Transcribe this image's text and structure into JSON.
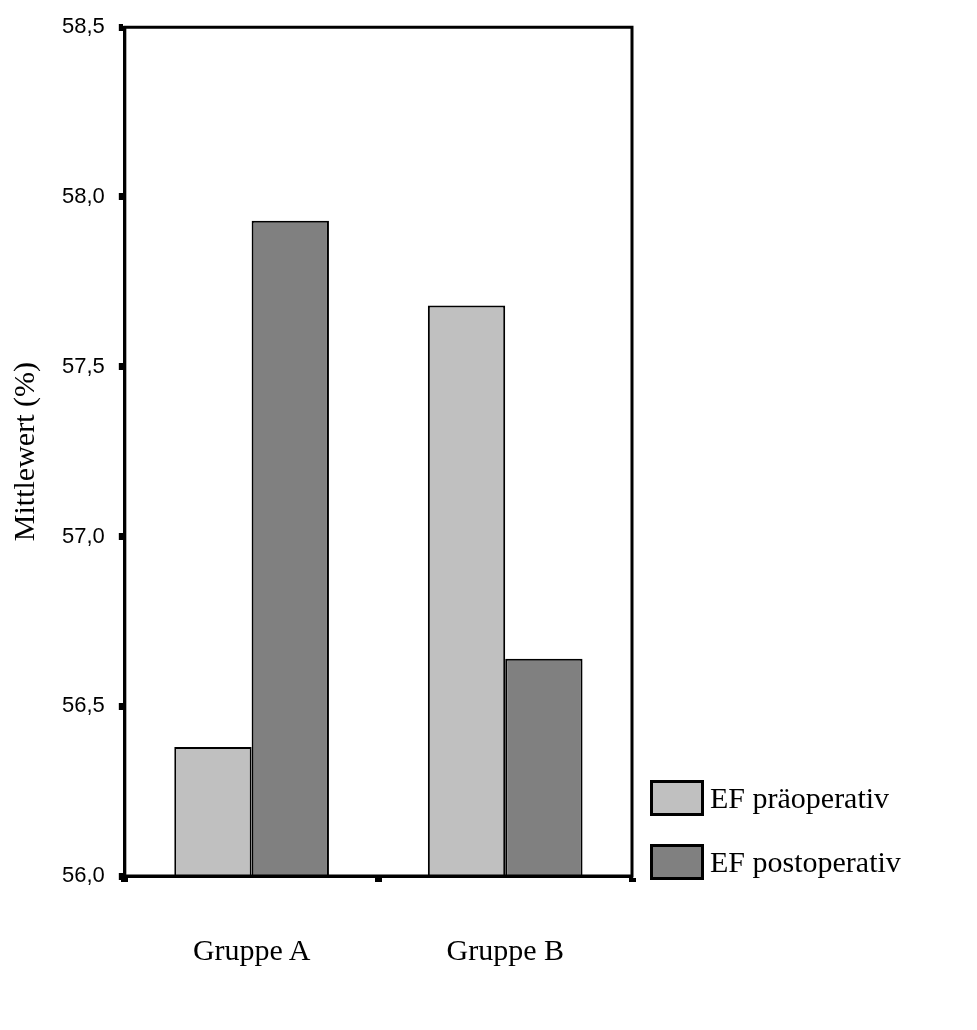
{
  "chart_data": {
    "type": "bar",
    "ylabel": "Mittlewert (%)",
    "categories": [
      "Gruppe A",
      "Gruppe B"
    ],
    "series": [
      {
        "name": "EF präoperativ",
        "color": "#c0c0c0",
        "values": [
          56.38,
          57.68
        ]
      },
      {
        "name": "EF postoperativ",
        "color": "#808080",
        "values": [
          57.93,
          56.64
        ]
      }
    ],
    "ylim": [
      56,
      58.5
    ],
    "yticks": [
      {
        "value": 56,
        "label": "56,0"
      },
      {
        "value": 56.5,
        "label": "56,5"
      },
      {
        "value": 57,
        "label": "57,0"
      },
      {
        "value": 57.5,
        "label": "57,5"
      },
      {
        "value": 58,
        "label": "58,0"
      },
      {
        "value": 58.5,
        "label": "58,5"
      }
    ],
    "grid": false,
    "legend": "bottom right"
  }
}
